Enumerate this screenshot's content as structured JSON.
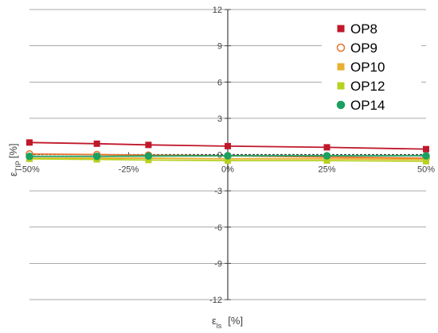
{
  "chart_data": {
    "type": "line",
    "title": "",
    "xlabel": "ε",
    "xlabel_sub": "ls",
    "xlabel_unit": "[%]",
    "ylabel": "ε",
    "ylabel_sub": "TIP",
    "ylabel_unit": "[%]",
    "xlim": [
      -50,
      50
    ],
    "ylim": [
      -12,
      12
    ],
    "x_ticks": [
      {
        "value": -50,
        "label": "-50%"
      },
      {
        "value": -25,
        "label": "-25%"
      },
      {
        "value": 0,
        "label": "0%"
      },
      {
        "value": 25,
        "label": "25%"
      },
      {
        "value": 50,
        "label": "50%"
      }
    ],
    "y_ticks": [
      {
        "value": 12,
        "label": "12"
      },
      {
        "value": 9,
        "label": "9"
      },
      {
        "value": 6,
        "label": "6"
      },
      {
        "value": 3,
        "label": "3"
      },
      {
        "value": 0,
        "label": "0"
      },
      {
        "value": -3,
        "label": "-3"
      },
      {
        "value": -6,
        "label": "-6"
      },
      {
        "value": -9,
        "label": "-9"
      },
      {
        "value": -12,
        "label": "-12"
      }
    ],
    "grid": true,
    "legend_position": "top-right",
    "series": [
      {
        "name": "OP8",
        "color": "#c0182a",
        "marker": "square",
        "filled": true,
        "x": [
          -50,
          -33,
          -20,
          0,
          25,
          50
        ],
        "y": [
          1.0,
          0.9,
          0.8,
          0.7,
          0.6,
          0.45
        ]
      },
      {
        "name": "OP9",
        "color": "#e8702a",
        "marker": "circle",
        "filled": false,
        "x": [
          -50,
          -33,
          -20,
          0,
          25,
          50
        ],
        "y": [
          0.05,
          0.0,
          -0.05,
          -0.1,
          -0.2,
          -0.3
        ]
      },
      {
        "name": "OP10",
        "color": "#e8b030",
        "marker": "square",
        "filled": true,
        "x": [
          -50,
          -33,
          -20,
          0,
          25,
          50
        ],
        "y": [
          -0.3,
          -0.3,
          -0.3,
          -0.35,
          -0.35,
          -0.4
        ]
      },
      {
        "name": "OP12",
        "color": "#b8d020",
        "marker": "square",
        "filled": true,
        "x": [
          -50,
          -33,
          -20,
          0,
          25,
          50
        ],
        "y": [
          -0.35,
          -0.4,
          -0.45,
          -0.5,
          -0.5,
          -0.55
        ]
      },
      {
        "name": "OP14",
        "color": "#1aa060",
        "marker": "circle",
        "filled": true,
        "x": [
          -50,
          -33,
          -20,
          0,
          25,
          50
        ],
        "y": [
          -0.15,
          -0.15,
          -0.12,
          -0.1,
          -0.1,
          -0.1
        ]
      }
    ]
  }
}
